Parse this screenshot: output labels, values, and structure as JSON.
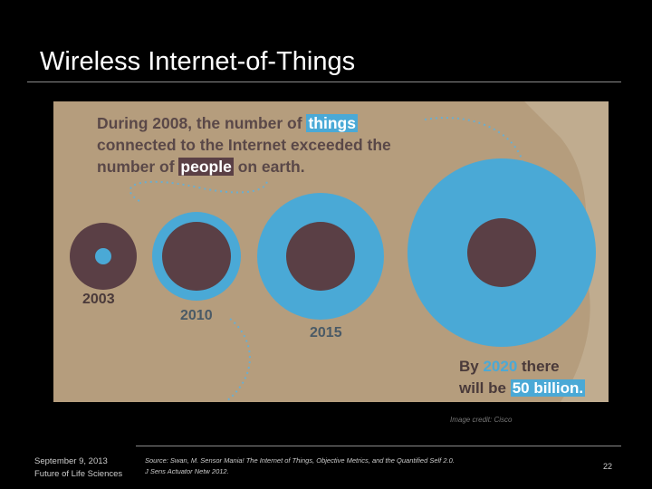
{
  "slide": {
    "title": "Wireless Internet-of-Things",
    "page_number": "22"
  },
  "image": {
    "headline_part1": "During 2008, the number of ",
    "headline_things": "things",
    "headline_part2": "connected to the Internet exceeded the",
    "headline_part3": "number of ",
    "headline_people": "people",
    "headline_part4": " on earth.",
    "years": [
      "2003",
      "2010",
      "2015"
    ],
    "closing_part1": "By ",
    "closing_year": "2020",
    "closing_part2": " there",
    "closing_part3": "will be ",
    "closing_billion": "50 billion.",
    "colors": {
      "background": "#b59d7d",
      "things_blue": "#4aa9d6",
      "people_brown": "#5a3f45"
    }
  },
  "credit": "Image credit: Cisco",
  "footer": {
    "date": "September 9, 2013",
    "org": "Future of Life Sciences",
    "source_line1": "Source: Swan, M. Sensor Mania! The Internet of Things, Objective Metrics, and the Quantified Self 2.0.",
    "source_line2": "J Sens Actuator Netw 2012."
  }
}
